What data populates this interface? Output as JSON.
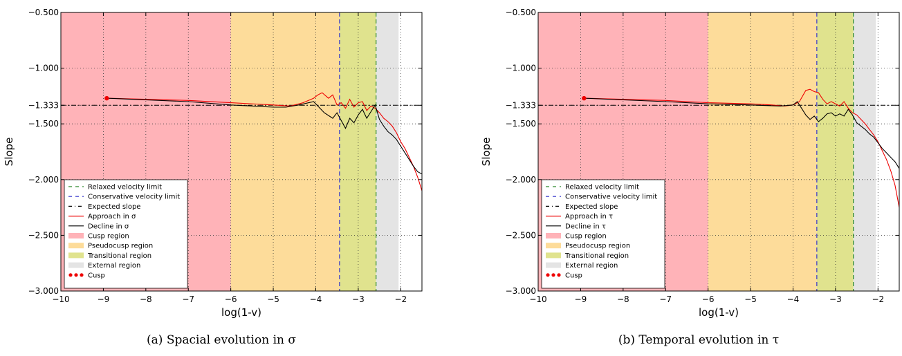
{
  "colors": {
    "cusp_region": "#ffb3b8",
    "pseudocusp_region": "#fddc9a",
    "transitional_region": "#e0e38e",
    "external_region": "#e4e4e4",
    "relaxed_limit": "#2e8b2e",
    "conservative_limit": "#3333cc",
    "approach": "#ee0000",
    "decline": "#000000",
    "cusp_marker": "#ee0000"
  },
  "chart_data": [
    {
      "type": "line",
      "caption": "(a) Spacial evolution in σ",
      "xlabel": "log(1-v)",
      "ylabel": "Slope",
      "xlim": [
        -10,
        -1.5
      ],
      "ylim": [
        -3.0,
        -0.5
      ],
      "xticks": [
        "−10",
        "−9",
        "−8",
        "−7",
        "−6",
        "−5",
        "−4",
        "−3",
        "−2"
      ],
      "xtick_values": [
        -10,
        -9,
        -8,
        -7,
        -6,
        -5,
        -4,
        -3,
        -2
      ],
      "yticks": [
        "−3.000",
        "−2.500",
        "−2.000",
        "−1.500",
        "−1.333",
        "−1.000",
        "−0.500"
      ],
      "ytick_values": [
        -3.0,
        -2.5,
        -2.0,
        -1.5,
        -1.333,
        -1.0,
        -0.5
      ],
      "grid": true,
      "legend_position": "lower-left",
      "regions": [
        {
          "name": "Cusp region",
          "x0": -10,
          "x1": -6,
          "color_key": "cusp_region"
        },
        {
          "name": "Pseudocusp region",
          "x0": -6,
          "x1": -3.44,
          "color_key": "pseudocusp_region"
        },
        {
          "name": "Transitional region",
          "x0": -3.44,
          "x1": -2.58,
          "color_key": "transitional_region"
        },
        {
          "name": "External region",
          "x0": -2.58,
          "x1": -2.05,
          "color_key": "external_region"
        }
      ],
      "vlines": [
        {
          "name": "Relaxed velocity limit",
          "x": -2.58,
          "color_key": "relaxed_limit"
        },
        {
          "name": "Conservative velocity limit",
          "x": -3.44,
          "color_key": "conservative_limit"
        }
      ],
      "hline": {
        "name": "Expected slope",
        "y": -1.333
      },
      "series": [
        {
          "name": "Approach in σ",
          "color_key": "approach",
          "x": [
            -8.92,
            -7.0,
            -6.0,
            -5.0,
            -4.6,
            -4.3,
            -4.05,
            -3.95,
            -3.85,
            -3.7,
            -3.6,
            -3.5,
            -3.4,
            -3.3,
            -3.2,
            -3.1,
            -3.0,
            -2.9,
            -2.8,
            -2.7,
            -2.6,
            -2.5,
            -2.4,
            -2.3,
            -2.2,
            -2.1,
            -2.0,
            -1.9,
            -1.8,
            -1.7,
            -1.6,
            -1.5
          ],
          "y": [
            -1.27,
            -1.29,
            -1.31,
            -1.33,
            -1.34,
            -1.31,
            -1.27,
            -1.24,
            -1.22,
            -1.27,
            -1.24,
            -1.33,
            -1.31,
            -1.36,
            -1.28,
            -1.35,
            -1.31,
            -1.3,
            -1.38,
            -1.34,
            -1.36,
            -1.4,
            -1.45,
            -1.48,
            -1.52,
            -1.58,
            -1.66,
            -1.72,
            -1.8,
            -1.88,
            -1.98,
            -2.1
          ]
        },
        {
          "name": "Decline in σ",
          "color_key": "decline",
          "x": [
            -8.92,
            -7.0,
            -6.0,
            -5.0,
            -4.7,
            -4.4,
            -4.05,
            -3.9,
            -3.8,
            -3.6,
            -3.5,
            -3.4,
            -3.3,
            -3.2,
            -3.1,
            -3.0,
            -2.9,
            -2.8,
            -2.7,
            -2.6,
            -2.5,
            -2.4,
            -2.3,
            -2.2,
            -2.1,
            -2.0,
            -1.9,
            -1.8,
            -1.7,
            -1.6,
            -1.5
          ],
          "y": [
            -1.27,
            -1.3,
            -1.33,
            -1.35,
            -1.35,
            -1.33,
            -1.3,
            -1.36,
            -1.4,
            -1.45,
            -1.4,
            -1.47,
            -1.54,
            -1.45,
            -1.49,
            -1.42,
            -1.37,
            -1.45,
            -1.39,
            -1.33,
            -1.46,
            -1.52,
            -1.57,
            -1.6,
            -1.64,
            -1.7,
            -1.76,
            -1.82,
            -1.88,
            -1.93,
            -1.95
          ]
        }
      ],
      "cusp_point": {
        "name": "Cusp",
        "x": -8.92,
        "y": -1.27
      },
      "legend": [
        {
          "label": "Relaxed velocity limit",
          "kind": "dash",
          "color_key": "relaxed_limit"
        },
        {
          "label": "Conservative velocity limit",
          "kind": "dash",
          "color_key": "conservative_limit"
        },
        {
          "label": "Expected slope",
          "kind": "dashdot",
          "color_key": "decline"
        },
        {
          "label": "Approach in σ",
          "kind": "line",
          "color_key": "approach"
        },
        {
          "label": "Decline in σ",
          "kind": "line",
          "color_key": "decline"
        },
        {
          "label": "Cusp region",
          "kind": "patch",
          "color_key": "cusp_region"
        },
        {
          "label": "Pseudocusp region",
          "kind": "patch",
          "color_key": "pseudocusp_region"
        },
        {
          "label": "Transitional region",
          "kind": "patch",
          "color_key": "transitional_region"
        },
        {
          "label": "External region",
          "kind": "patch",
          "color_key": "external_region"
        },
        {
          "label": "Cusp",
          "kind": "dots",
          "color_key": "cusp_marker"
        }
      ]
    },
    {
      "type": "line",
      "caption": "(b) Temporal evolution in τ",
      "xlabel": "log(1-v)",
      "ylabel": "Slope",
      "xlim": [
        -10,
        -1.5
      ],
      "ylim": [
        -3.0,
        -0.5
      ],
      "xticks": [
        "−10",
        "−9",
        "−8",
        "−7",
        "−6",
        "−5",
        "−4",
        "−3",
        "−2"
      ],
      "xtick_values": [
        -10,
        -9,
        -8,
        -7,
        -6,
        -5,
        -4,
        -3,
        -2
      ],
      "yticks": [
        "−3.000",
        "−2.500",
        "−2.000",
        "−1.500",
        "−1.333",
        "−1.000",
        "−0.500"
      ],
      "ytick_values": [
        -3.0,
        -2.5,
        -2.0,
        -1.5,
        -1.333,
        -1.0,
        -0.5
      ],
      "grid": true,
      "legend_position": "lower-left",
      "regions": [
        {
          "name": "Cusp region",
          "x0": -10,
          "x1": -6,
          "color_key": "cusp_region"
        },
        {
          "name": "Pseudocusp region",
          "x0": -6,
          "x1": -3.44,
          "color_key": "pseudocusp_region"
        },
        {
          "name": "Transitional region",
          "x0": -3.44,
          "x1": -2.58,
          "color_key": "transitional_region"
        },
        {
          "name": "External region",
          "x0": -2.58,
          "x1": -2.05,
          "color_key": "external_region"
        }
      ],
      "vlines": [
        {
          "name": "Relaxed velocity limit",
          "x": -2.58,
          "color_key": "relaxed_limit"
        },
        {
          "name": "Conservative velocity limit",
          "x": -3.44,
          "color_key": "conservative_limit"
        }
      ],
      "hline": {
        "name": "Expected slope",
        "y": -1.333
      },
      "series": [
        {
          "name": "Approach in τ",
          "color_key": "approach",
          "x": [
            -8.92,
            -7.0,
            -6.0,
            -5.0,
            -4.5,
            -4.2,
            -4.0,
            -3.85,
            -3.7,
            -3.6,
            -3.5,
            -3.4,
            -3.3,
            -3.2,
            -3.1,
            -3.0,
            -2.9,
            -2.8,
            -2.7,
            -2.6,
            -2.5,
            -2.4,
            -2.3,
            -2.2,
            -2.1,
            -2.0,
            -1.9,
            -1.8,
            -1.7,
            -1.6,
            -1.5
          ],
          "y": [
            -1.27,
            -1.29,
            -1.31,
            -1.32,
            -1.33,
            -1.34,
            -1.33,
            -1.3,
            -1.2,
            -1.19,
            -1.21,
            -1.22,
            -1.28,
            -1.32,
            -1.3,
            -1.32,
            -1.34,
            -1.3,
            -1.36,
            -1.4,
            -1.42,
            -1.46,
            -1.5,
            -1.55,
            -1.6,
            -1.66,
            -1.74,
            -1.82,
            -1.92,
            -2.05,
            -2.25
          ]
        },
        {
          "name": "Decline in τ",
          "color_key": "decline",
          "x": [
            -8.92,
            -7.0,
            -6.0,
            -5.0,
            -4.3,
            -4.0,
            -3.9,
            -3.8,
            -3.7,
            -3.6,
            -3.5,
            -3.4,
            -3.3,
            -3.2,
            -3.1,
            -3.0,
            -2.9,
            -2.8,
            -2.7,
            -2.6,
            -2.5,
            -2.4,
            -2.3,
            -2.2,
            -2.1,
            -2.0,
            -1.9,
            -1.8,
            -1.7,
            -1.6,
            -1.5
          ],
          "y": [
            -1.27,
            -1.3,
            -1.32,
            -1.33,
            -1.34,
            -1.33,
            -1.3,
            -1.36,
            -1.42,
            -1.46,
            -1.43,
            -1.48,
            -1.45,
            -1.41,
            -1.4,
            -1.43,
            -1.41,
            -1.43,
            -1.37,
            -1.42,
            -1.49,
            -1.52,
            -1.55,
            -1.59,
            -1.62,
            -1.67,
            -1.72,
            -1.76,
            -1.8,
            -1.84,
            -1.9
          ]
        }
      ],
      "cusp_point": {
        "name": "Cusp",
        "x": -8.92,
        "y": -1.27
      },
      "legend": [
        {
          "label": "Relaxed velocity limit",
          "kind": "dash",
          "color_key": "relaxed_limit"
        },
        {
          "label": "Conservative velocity limit",
          "kind": "dash",
          "color_key": "conservative_limit"
        },
        {
          "label": "Expected slope",
          "kind": "dashdot",
          "color_key": "decline"
        },
        {
          "label": "Approach in τ",
          "kind": "line",
          "color_key": "approach"
        },
        {
          "label": "Decline in τ",
          "kind": "line",
          "color_key": "decline"
        },
        {
          "label": "Cusp region",
          "kind": "patch",
          "color_key": "cusp_region"
        },
        {
          "label": "Pseudocusp region",
          "kind": "patch",
          "color_key": "pseudocusp_region"
        },
        {
          "label": "Transitional region",
          "kind": "patch",
          "color_key": "transitional_region"
        },
        {
          "label": "External region",
          "kind": "patch",
          "color_key": "external_region"
        },
        {
          "label": "Cusp",
          "kind": "dots",
          "color_key": "cusp_marker"
        }
      ]
    }
  ]
}
